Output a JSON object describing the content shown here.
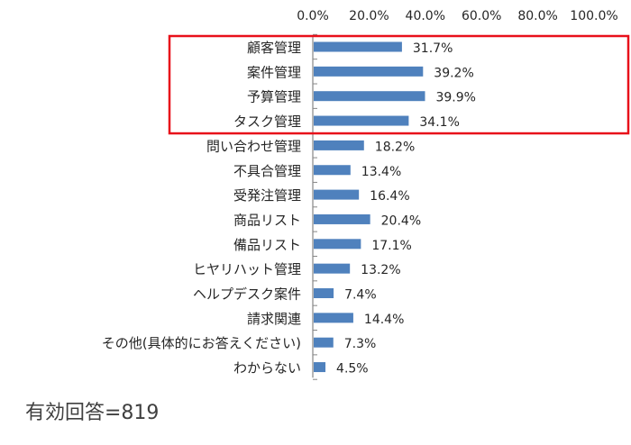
{
  "chart_data": {
    "type": "bar",
    "orientation": "horizontal",
    "categories": [
      "顧客管理",
      "案件管理",
      "予算管理",
      "タスク管理",
      "問い合わせ管理",
      "不具合管理",
      "受発注管理",
      "商品リスト",
      "備品リスト",
      "ヒヤリハット管理",
      "ヘルプデスク案件",
      "請求関連",
      "その他(具体的にお答えください)",
      "わからない"
    ],
    "values": [
      31.7,
      39.2,
      39.9,
      34.1,
      18.2,
      13.4,
      16.4,
      20.4,
      17.1,
      13.2,
      7.4,
      14.4,
      7.3,
      4.5
    ],
    "data_labels": [
      "31.7%",
      "39.2%",
      "39.9%",
      "34.1%",
      "18.2%",
      "13.4%",
      "16.4%",
      "20.4%",
      "17.1%",
      "13.2%",
      "7.4%",
      "14.4%",
      "7.3%",
      "4.5%"
    ],
    "xlim": [
      0,
      100
    ],
    "x_ticks": [
      "0.0%",
      "20.0%",
      "40.0%",
      "60.0%",
      "80.0%",
      "100.0%"
    ],
    "x_axis_position": "top",
    "grid": false,
    "highlighted_categories": [
      "顧客管理",
      "案件管理",
      "予算管理",
      "タスク管理"
    ],
    "colors": {
      "bar": "#4f81bd",
      "highlight_box": "#e8101a",
      "axis": "#868686",
      "text": "#262626"
    }
  },
  "footnote": "有効回答=819"
}
